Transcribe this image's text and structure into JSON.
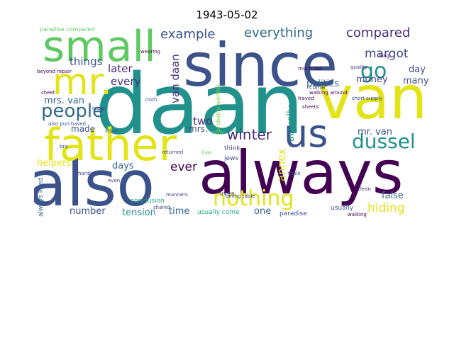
{
  "title": "1943-05-02",
  "colors": {
    "yellow": "#e2e418",
    "green": "#5ec962",
    "lightgreen": "#86d549",
    "teal": "#21918c",
    "tealblue": "#2a788e",
    "blue": "#3b528b",
    "darkblue": "#31688e",
    "indigo": "#414487",
    "purple": "#472d7b",
    "darkpurple": "#440154",
    "cyan": "#22a884"
  },
  "words": {
    "daan": "daan",
    "since": "since",
    "always_big": "always",
    "also": "also",
    "van_big": "van",
    "father": "father",
    "small": "small",
    "mr": "mr.",
    "us": "us",
    "people": "people",
    "go": "go",
    "nothing": "nothing",
    "dussel": "dussel",
    "winter": "winter",
    "example": "example",
    "everything": "everything",
    "compared": "compared",
    "margot": "margot",
    "things": "things",
    "later": "later",
    "every": "every",
    "van_daan": "van daan",
    "mrs_van": "mrs. van",
    "mr_van": "mr. van",
    "politics": "politics",
    "many": "many",
    "day": "day",
    "money": "money",
    "two": "two",
    "ever": "ever",
    "days": "days",
    "helpers": "helpers",
    "made": "made",
    "mrs": "mrs.",
    "annex": "annex",
    "actually": "actually",
    "hiding": "hiding",
    "false": "false",
    "one": "one",
    "time": "time",
    "tension": "tension",
    "number": "number",
    "lives": "lives",
    "jews": "jews",
    "think": "think",
    "probably_wonder": "probably wonder",
    "conclusion": "conclusion",
    "usually_come": "usually come",
    "paradise": "paradise",
    "usually": "usually",
    "always_lived": "always lived",
    "paradise_compared": "paradise compared",
    "live": "live",
    "clean": "clean",
    "quality": "quality",
    "sheet": "sheet",
    "sheets": "sheets",
    "frayed": "frayed",
    "come": "come",
    "short_supply": "short supply",
    "dining_table": "dining table",
    "returned": "returned",
    "walking_around": "walking around",
    "beyond_repair": "beyond repair",
    "cover": "cover",
    "hardly": "hardly",
    "also_purchased": "also purchased",
    "stove": "stove",
    "cloth": "cloth",
    "table": "table",
    "bra": "bra",
    "repair": "repair",
    "manners": "manners",
    "even": "even",
    "shared": "shared",
    "wearing": "wearing",
    "long": "long",
    "walking": "walking",
    "much_use": "much use"
  }
}
